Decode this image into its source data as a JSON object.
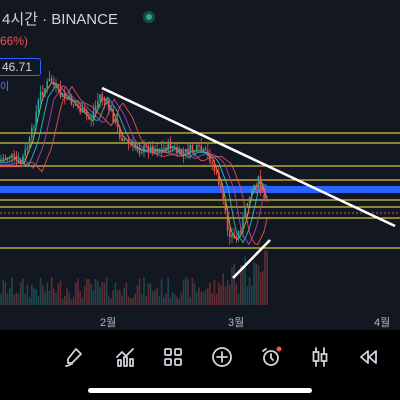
{
  "header": {
    "title": "4시간 · BINANCE",
    "change": "66%)",
    "price_label": "46.71",
    "price_sub": "이"
  },
  "xaxis": {
    "labels": [
      "2월",
      "3월",
      "4월"
    ]
  },
  "colors": {
    "background": "#131722",
    "up": "#26a69a",
    "down": "#ef5350",
    "level_line": "#d4c73a",
    "blue_band": "#2962ff",
    "trendline": "#ffffff"
  },
  "toolbar": {
    "icons": [
      "pencil-icon",
      "chart-indicators-icon",
      "grid-icon",
      "plus-circle-icon",
      "alarm-clock-icon",
      "candles-icon",
      "rewind-icon"
    ]
  }
}
